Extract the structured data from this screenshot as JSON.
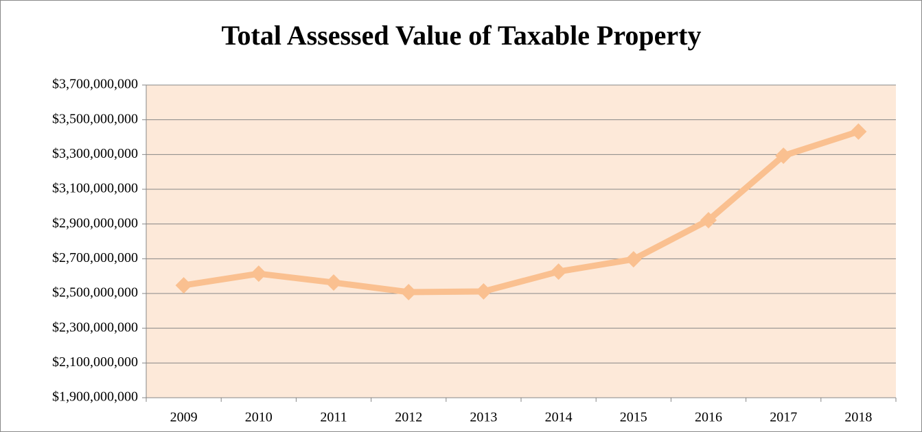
{
  "chart_data": {
    "type": "line",
    "title": "Total Assessed Value of Taxable Property",
    "categories": [
      "2009",
      "2010",
      "2011",
      "2012",
      "2013",
      "2014",
      "2015",
      "2016",
      "2017",
      "2018"
    ],
    "series": [
      {
        "name": "Total Assessed Value",
        "color": "#fac090",
        "values": [
          2547000000,
          2614000000,
          2563000000,
          2508000000,
          2512000000,
          2626000000,
          2697000000,
          2922000000,
          3293000000,
          3432000000
        ]
      }
    ],
    "ylim": [
      1900000000,
      3700000000
    ],
    "yticks": [
      {
        "value": 1900000000,
        "label": "$1,900,000,000"
      },
      {
        "value": 2100000000,
        "label": "$2,100,000,000"
      },
      {
        "value": 2300000000,
        "label": "$2,300,000,000"
      },
      {
        "value": 2500000000,
        "label": "$2,500,000,000"
      },
      {
        "value": 2700000000,
        "label": "$2,700,000,000"
      },
      {
        "value": 2900000000,
        "label": "$2,900,000,000"
      },
      {
        "value": 3100000000,
        "label": "$3,100,000,000"
      },
      {
        "value": 3300000000,
        "label": "$3,300,000,000"
      },
      {
        "value": 3500000000,
        "label": "$3,500,000,000"
      },
      {
        "value": 3700000000,
        "label": "$3,700,000,000"
      }
    ],
    "grid": true,
    "plot_background": "#fde9d9"
  }
}
